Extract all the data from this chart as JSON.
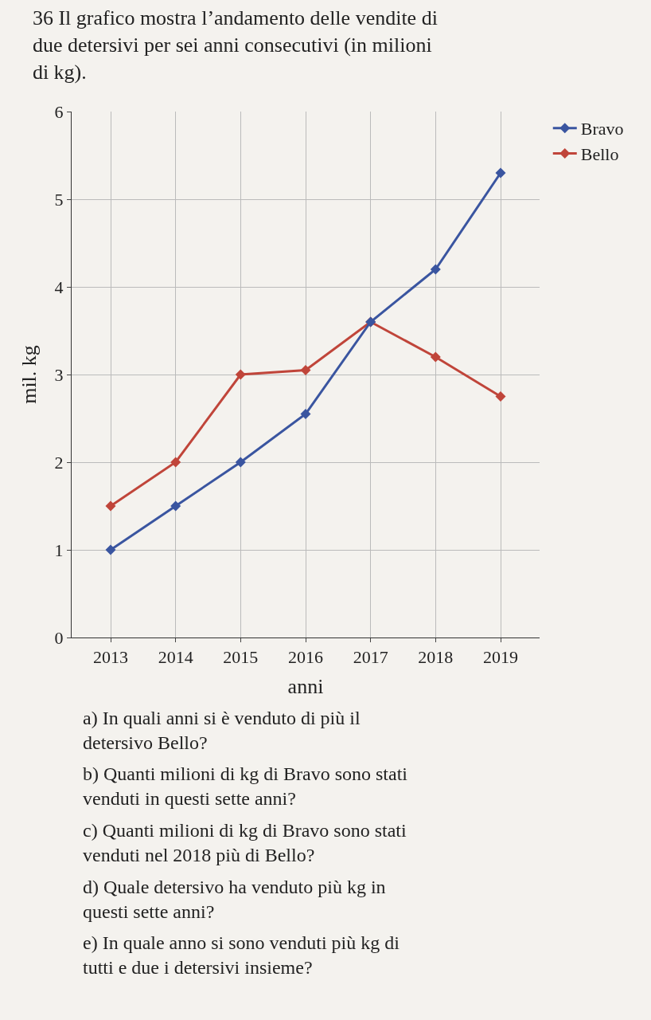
{
  "chart_data": {
    "type": "line",
    "title": "36 Il grafico mostra l’andamento delle vendite di due detersivi per sei anni consecutivi (in milioni di kg).",
    "xlabel": "anni",
    "ylabel": "mil. kg",
    "categories": [
      "2013",
      "2014",
      "2015",
      "2016",
      "2017",
      "2018",
      "2019"
    ],
    "series": [
      {
        "name": "Bravo",
        "color": "#3a55a0",
        "values": [
          1,
          1.5,
          2,
          2.55,
          3.6,
          4.2,
          5.3
        ]
      },
      {
        "name": "Bello",
        "color": "#c0453a",
        "values": [
          1.5,
          2,
          3,
          3.05,
          3.6,
          3.2,
          2.75
        ]
      }
    ],
    "ylim": [
      0,
      6
    ],
    "yticks": [
      0,
      1,
      2,
      3,
      4,
      5,
      6
    ],
    "grid": true,
    "legend": "top right",
    "marker": "diamond",
    "line_style": "solid",
    "annotations": [
      "a) In quali anni si è venduto di più il detersivo Bello?",
      "b) Quanti milioni di kg di Bravo sono stati venduti in questi sette anni?",
      "c) Quanti milioni di kg di Bravo sono stati venduti nel 2018 più di Bello?",
      "d) Quale detersivo ha venduto più kg in questi sette anni?",
      "e) In quale anno si sono venduti più kg di tutti e due i detersivi insieme?"
    ]
  }
}
